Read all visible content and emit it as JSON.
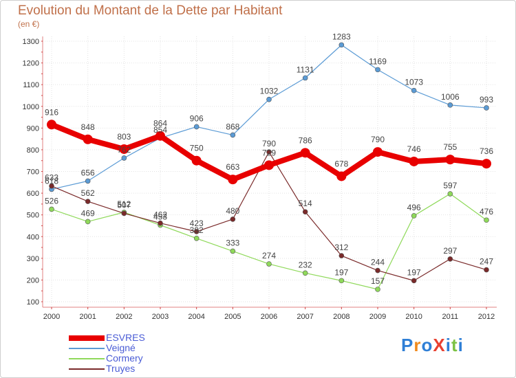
{
  "title": "Evolution du Montant de la Dette par Habitant",
  "subtitle": "(en €)",
  "logo": {
    "text": "ProXiti",
    "colors": [
      "#2f7fd6",
      "#f08a1c",
      "#2f7fd6",
      "#e84030",
      "#2f7fd6",
      "#7cc243",
      "#2f7fd6"
    ]
  },
  "chart_data": {
    "type": "line",
    "title": "Evolution du Montant de la Dette par Habitant",
    "ylabel": "(en €)",
    "ylim": [
      100,
      1300
    ],
    "yticks": [
      100,
      200,
      300,
      400,
      500,
      600,
      700,
      800,
      900,
      1000,
      1100,
      1200,
      1300
    ],
    "categories": [
      "2000",
      "2001",
      "2002",
      "2003",
      "2004",
      "2005",
      "2006",
      "2007",
      "2008",
      "2009",
      "2010",
      "2011",
      "2012"
    ],
    "legend_position": "bottom-left",
    "series": [
      {
        "name": "ESVRES",
        "color": "#e80000",
        "values": [
          916,
          848,
          803,
          864,
          750,
          663,
          729,
          786,
          678,
          790,
          746,
          755,
          736
        ]
      },
      {
        "name": "Veigné",
        "color": "#5b9bd5",
        "values": [
          618,
          656,
          762,
          854,
          906,
          868,
          1032,
          1131,
          1283,
          1169,
          1073,
          1006,
          993
        ]
      },
      {
        "name": "Cormery",
        "color": "#8fd95a",
        "values": [
          526,
          469,
          512,
          453,
          392,
          333,
          274,
          232,
          197,
          157,
          496,
          597,
          476
        ]
      },
      {
        "name": "Truyes",
        "color": "#7a2a2a",
        "values": [
          633,
          562,
          507,
          462,
          423,
          480,
          790,
          514,
          312,
          244,
          197,
          297,
          247
        ]
      }
    ]
  }
}
